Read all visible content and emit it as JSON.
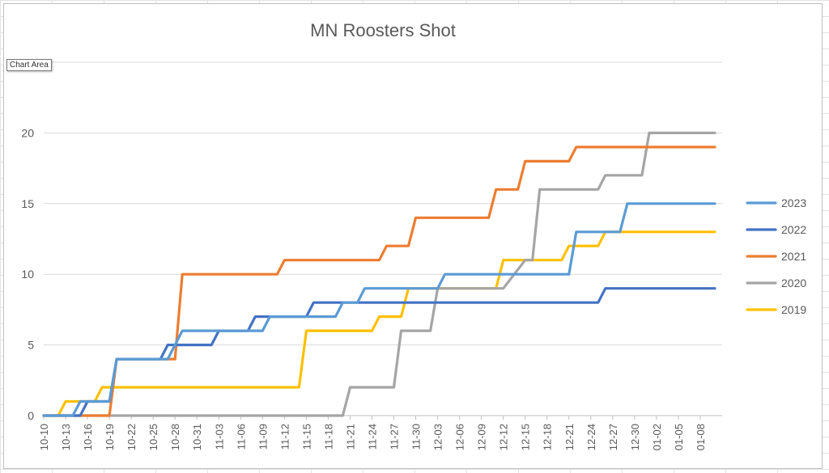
{
  "tooltip": "Chart Area",
  "chart_data": {
    "type": "line",
    "title": "MN Roosters Shot",
    "xlabel": "",
    "ylabel": "",
    "ylim": [
      0,
      25
    ],
    "yticks": [
      0,
      5,
      10,
      15,
      20
    ],
    "xlim": [
      "10-10",
      "01-11"
    ],
    "grid": true,
    "legend": "right",
    "x_tick_labels": [
      "10-10",
      "10-13",
      "10-16",
      "10-19",
      "10-22",
      "10-25",
      "10-28",
      "10-31",
      "11-03",
      "11-06",
      "11-09",
      "11-12",
      "11-15",
      "11-18",
      "11-21",
      "11-24",
      "11-27",
      "11-30",
      "12-03",
      "12-06",
      "12-09",
      "12-12",
      "12-15",
      "12-18",
      "12-21",
      "12-24",
      "12-27",
      "12-30",
      "01-02",
      "01-05",
      "01-08"
    ],
    "series": [
      {
        "name": "2023",
        "color": "#5B9BD5",
        "points": [
          [
            "10-10",
            0
          ],
          [
            "10-14",
            0
          ],
          [
            "10-15",
            1
          ],
          [
            "10-19",
            1
          ],
          [
            "10-20",
            4
          ],
          [
            "10-21",
            4
          ],
          [
            "10-27",
            4
          ],
          [
            "10-28",
            5
          ],
          [
            "10-29",
            6
          ],
          [
            "11-05",
            6
          ],
          [
            "11-06",
            6
          ],
          [
            "11-09",
            6
          ],
          [
            "11-10",
            7
          ],
          [
            "11-18",
            7
          ],
          [
            "11-19",
            7
          ],
          [
            "11-20",
            8
          ],
          [
            "11-22",
            8
          ],
          [
            "11-23",
            9
          ],
          [
            "12-03",
            9
          ],
          [
            "12-04",
            10
          ],
          [
            "12-21",
            10
          ],
          [
            "12-22",
            13
          ],
          [
            "12-28",
            13
          ],
          [
            "12-29",
            15
          ],
          [
            "01-10",
            15
          ]
        ]
      },
      {
        "name": "2022",
        "color": "#4472C4",
        "points": [
          [
            "10-10",
            0
          ],
          [
            "10-15",
            0
          ],
          [
            "10-16",
            1
          ],
          [
            "10-19",
            1
          ],
          [
            "10-20",
            4
          ],
          [
            "10-26",
            4
          ],
          [
            "10-27",
            5
          ],
          [
            "11-02",
            5
          ],
          [
            "11-03",
            6
          ],
          [
            "11-07",
            6
          ],
          [
            "11-08",
            7
          ],
          [
            "11-15",
            7
          ],
          [
            "11-16",
            8
          ],
          [
            "12-25",
            8
          ],
          [
            "12-26",
            9
          ],
          [
            "01-10",
            9
          ]
        ]
      },
      {
        "name": "2021",
        "color": "#ED7D31",
        "points": [
          [
            "10-10",
            0
          ],
          [
            "10-19",
            0
          ],
          [
            "10-20",
            4
          ],
          [
            "10-28",
            4
          ],
          [
            "10-29",
            10
          ],
          [
            "11-11",
            10
          ],
          [
            "11-12",
            11
          ],
          [
            "11-25",
            11
          ],
          [
            "11-26",
            12
          ],
          [
            "11-29",
            12
          ],
          [
            "11-30",
            14
          ],
          [
            "12-10",
            14
          ],
          [
            "12-11",
            16
          ],
          [
            "12-14",
            16
          ],
          [
            "12-15",
            18
          ],
          [
            "12-21",
            18
          ],
          [
            "12-22",
            19
          ],
          [
            "01-10",
            19
          ]
        ]
      },
      {
        "name": "2020",
        "color": "#A5A5A5",
        "points": [
          [
            "10-10",
            0
          ],
          [
            "11-20",
            0
          ],
          [
            "11-21",
            2
          ],
          [
            "11-27",
            2
          ],
          [
            "11-28",
            6
          ],
          [
            "12-02",
            6
          ],
          [
            "12-03",
            9
          ],
          [
            "12-12",
            9
          ],
          [
            "12-15",
            11
          ],
          [
            "12-16",
            11
          ],
          [
            "12-17",
            16
          ],
          [
            "12-25",
            16
          ],
          [
            "12-26",
            17
          ],
          [
            "12-31",
            17
          ],
          [
            "01-01",
            20
          ],
          [
            "01-10",
            20
          ]
        ]
      },
      {
        "name": "2019",
        "color": "#FFC000",
        "points": [
          [
            "10-10",
            0
          ],
          [
            "10-12",
            0
          ],
          [
            "10-13",
            1
          ],
          [
            "10-17",
            1
          ],
          [
            "10-18",
            2
          ],
          [
            "11-14",
            2
          ],
          [
            "11-15",
            6
          ],
          [
            "11-24",
            6
          ],
          [
            "11-25",
            7
          ],
          [
            "11-28",
            7
          ],
          [
            "11-29",
            9
          ],
          [
            "12-11",
            9
          ],
          [
            "12-12",
            11
          ],
          [
            "12-20",
            11
          ],
          [
            "12-21",
            12
          ],
          [
            "12-25",
            12
          ],
          [
            "12-26",
            13
          ],
          [
            "01-10",
            13
          ]
        ]
      }
    ]
  }
}
